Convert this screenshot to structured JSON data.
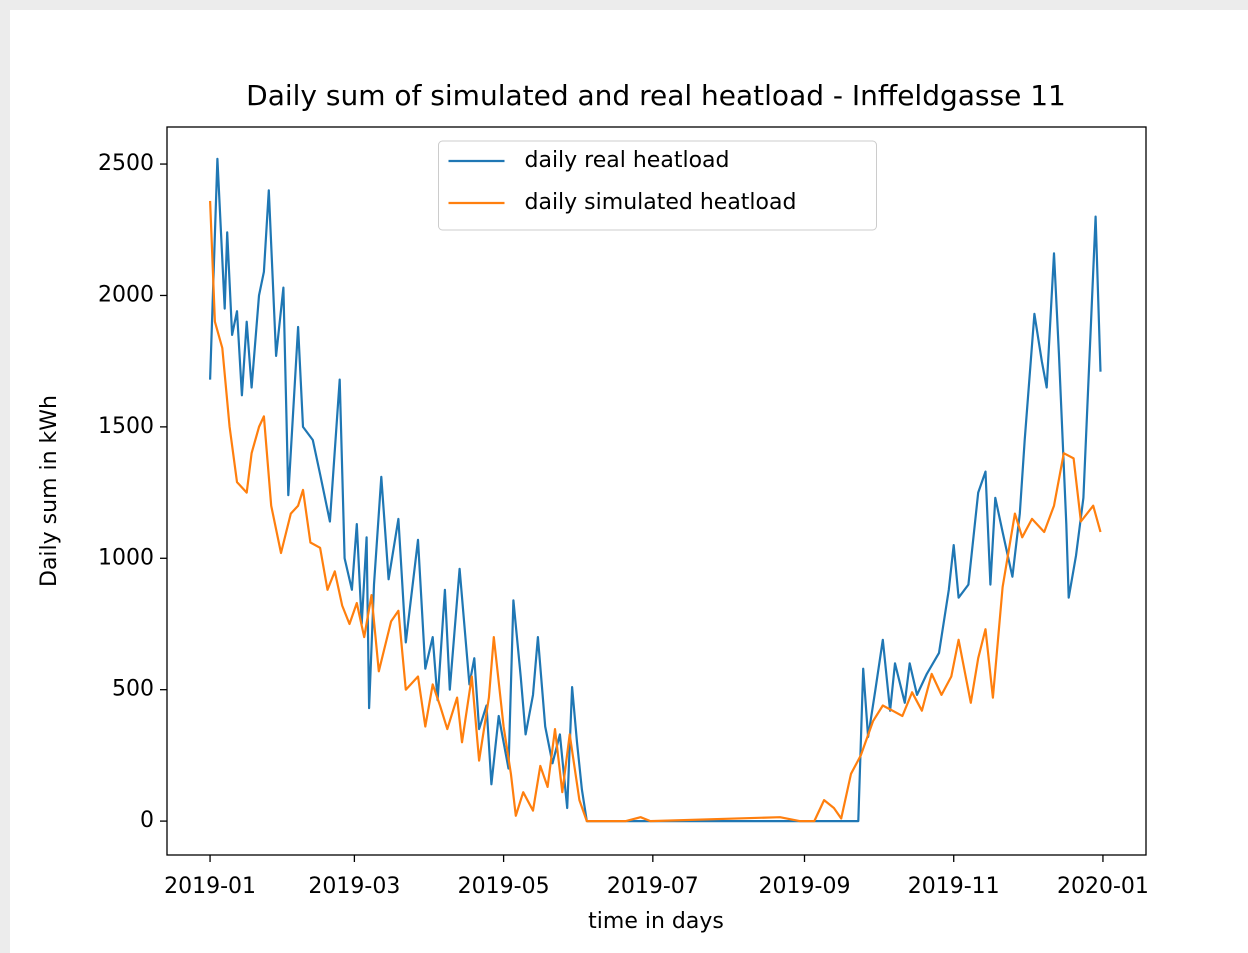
{
  "chart_data": {
    "type": "line",
    "title": "Daily sum of simulated and real heatload - Inffeldgasse 11",
    "xlabel": "time in days",
    "ylabel": "Daily sum in kWh",
    "xlim": [
      -17.6,
      382.6
    ],
    "xticks": [
      {
        "value": 0,
        "label": "2019-01"
      },
      {
        "value": 59,
        "label": "2019-03"
      },
      {
        "value": 120,
        "label": "2019-05"
      },
      {
        "value": 181,
        "label": "2019-07"
      },
      {
        "value": 243,
        "label": "2019-09"
      },
      {
        "value": 304,
        "label": "2019-11"
      },
      {
        "value": 365,
        "label": "2020-01"
      }
    ],
    "ylim": [
      -129,
      2641
    ],
    "yticks": [
      0,
      500,
      1000,
      1500,
      2000,
      2500
    ],
    "legend": "upper center",
    "grid": false,
    "series": [
      {
        "name": "daily real heatload",
        "color": "#1f77b4",
        "x": [
          0,
          3,
          6,
          7,
          9,
          11,
          13,
          15,
          17,
          20,
          22,
          24,
          27,
          30,
          32,
          36,
          38,
          42,
          45,
          49,
          53,
          55,
          58,
          60,
          62,
          64,
          65,
          67,
          70,
          73,
          77,
          80,
          85,
          88,
          91,
          93,
          96,
          98,
          102,
          106,
          108,
          110,
          113,
          115,
          118,
          122,
          124,
          127,
          129,
          132,
          134,
          137,
          140,
          143,
          146,
          148,
          150,
          152,
          154,
          200,
          265,
          267,
          269,
          272,
          275,
          278,
          280,
          284,
          286,
          289,
          293,
          298,
          302,
          304,
          306,
          310,
          314,
          317,
          319,
          321,
          324,
          328,
          331,
          333,
          337,
          340,
          342,
          345,
          347,
          350,
          351,
          354,
          357,
          362,
          364
        ],
        "values": [
          1680,
          2520,
          1950,
          2240,
          1850,
          1940,
          1620,
          1900,
          1650,
          2000,
          2090,
          2400,
          1770,
          2030,
          1240,
          1880,
          1500,
          1450,
          1320,
          1140,
          1680,
          1000,
          880,
          1130,
          750,
          1080,
          430,
          900,
          1310,
          920,
          1150,
          680,
          1070,
          580,
          700,
          460,
          880,
          500,
          960,
          520,
          620,
          350,
          440,
          140,
          400,
          200,
          840,
          550,
          330,
          480,
          700,
          360,
          220,
          330,
          50,
          510,
          300,
          120,
          0,
          0,
          0,
          580,
          320,
          500,
          690,
          420,
          600,
          450,
          600,
          480,
          560,
          640,
          880,
          1050,
          850,
          900,
          1250,
          1330,
          900,
          1230,
          1100,
          930,
          1170,
          1450,
          1930,
          1750,
          1650,
          2160,
          1780,
          1130,
          850,
          1010,
          1230,
          2300,
          1710
        ]
      },
      {
        "name": "daily simulated heatload",
        "color": "#ff7f0e",
        "x": [
          0,
          2,
          5,
          8,
          11,
          15,
          17,
          20,
          22,
          25,
          29,
          33,
          36,
          38,
          41,
          45,
          48,
          51,
          54,
          57,
          60,
          63,
          66,
          69,
          74,
          77,
          80,
          85,
          88,
          91,
          94,
          97,
          101,
          103,
          107,
          110,
          114,
          116,
          120,
          123,
          125,
          128,
          132,
          135,
          138,
          141,
          144,
          147,
          151,
          154,
          170,
          176,
          180,
          233,
          241,
          247,
          251,
          255,
          258,
          262,
          266,
          271,
          275,
          279,
          283,
          287,
          291,
          295,
          299,
          303,
          306,
          311,
          314,
          317,
          320,
          324,
          329,
          332,
          336,
          341,
          345,
          349,
          353,
          356,
          361,
          364
        ],
        "values": [
          2360,
          1900,
          1800,
          1500,
          1290,
          1250,
          1400,
          1500,
          1540,
          1200,
          1020,
          1170,
          1200,
          1260,
          1060,
          1040,
          880,
          950,
          820,
          750,
          830,
          700,
          860,
          570,
          760,
          800,
          500,
          550,
          360,
          520,
          440,
          350,
          470,
          300,
          550,
          230,
          470,
          700,
          360,
          180,
          20,
          110,
          40,
          210,
          130,
          350,
          110,
          330,
          80,
          0,
          0,
          15,
          0,
          15,
          0,
          0,
          80,
          50,
          10,
          180,
          250,
          380,
          440,
          420,
          400,
          490,
          420,
          560,
          480,
          550,
          690,
          450,
          620,
          730,
          470,
          890,
          1170,
          1080,
          1150,
          1100,
          1200,
          1400,
          1380,
          1140,
          1200,
          1100
        ]
      }
    ]
  }
}
